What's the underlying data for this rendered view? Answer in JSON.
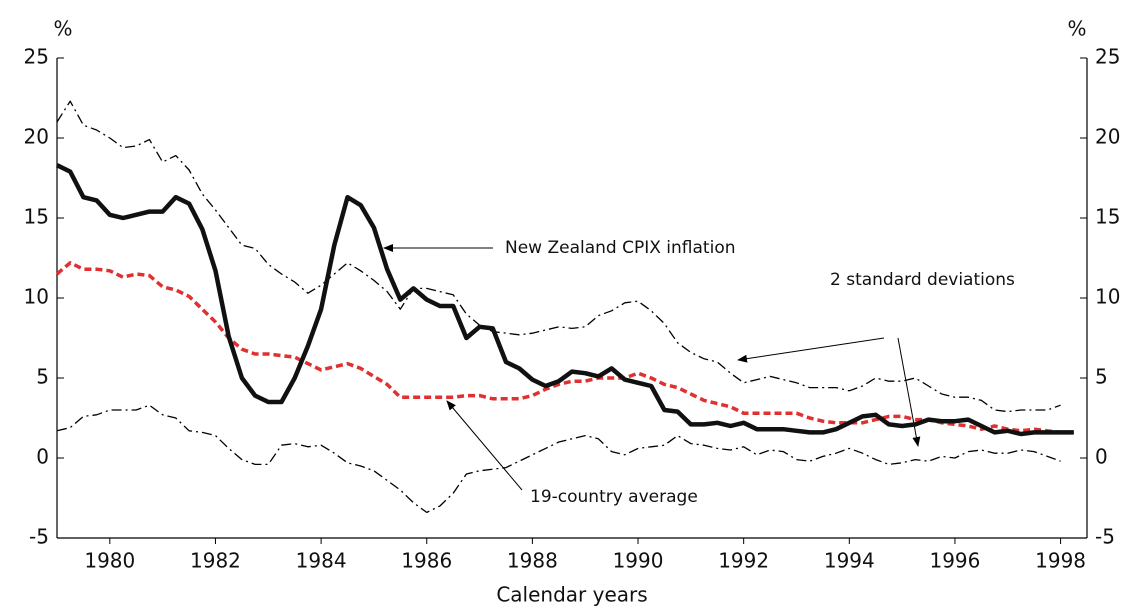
{
  "chart_data": {
    "type": "line",
    "y_label": "%",
    "y2_label": "%",
    "x_label": "Calendar years",
    "xlim": [
      1979,
      1998.5
    ],
    "xticks": [
      1980,
      1982,
      1984,
      1986,
      1988,
      1990,
      1992,
      1994,
      1996,
      1998
    ],
    "ylim": [
      -5,
      25
    ],
    "yticks": [
      -5,
      0,
      5,
      10,
      15,
      20,
      25
    ],
    "y2lim": [
      -5,
      25
    ],
    "y2ticks": [
      -5,
      0,
      5,
      10,
      15,
      20,
      25
    ],
    "grid": false,
    "x": [
      1979,
      1979.25,
      1979.5,
      1979.75,
      1980,
      1980.25,
      1980.5,
      1980.75,
      1981,
      1981.25,
      1981.5,
      1981.75,
      1982,
      1982.25,
      1982.5,
      1982.75,
      1983,
      1983.25,
      1983.5,
      1983.75,
      1984,
      1984.25,
      1984.5,
      1984.75,
      1985,
      1985.25,
      1985.5,
      1985.75,
      1986,
      1986.25,
      1986.5,
      1986.75,
      1987,
      1987.25,
      1987.5,
      1987.75,
      1988,
      1988.25,
      1988.5,
      1988.75,
      1989,
      1989.25,
      1989.5,
      1989.75,
      1990,
      1990.25,
      1990.5,
      1990.75,
      1991,
      1991.25,
      1991.5,
      1991.75,
      1992,
      1992.25,
      1992.5,
      1992.75,
      1993,
      1993.25,
      1993.5,
      1993.75,
      1994,
      1994.25,
      1994.5,
      1994.75,
      1995,
      1995.25,
      1995.5,
      1995.75,
      1996,
      1996.25,
      1996.5,
      1996.75,
      1997,
      1997.25,
      1997.5,
      1997.75,
      1998,
      1998.25
    ],
    "series": [
      {
        "color": "#000000",
        "style": "dashdot",
        "linewidth": 1.3,
        "values": [
          21,
          22.3,
          20.8,
          20.5,
          20,
          19.4,
          19.5,
          19.9,
          18.5,
          18.9,
          18,
          16.5,
          15.5,
          14.4,
          13.3,
          13.1,
          12.1,
          11.5,
          11.0,
          10.3,
          10.8,
          11.5,
          12.2,
          11.7,
          11.1,
          10.4,
          9.3,
          10.6,
          10.6,
          10.4,
          10.2,
          9.0,
          8.3,
          7.9,
          7.8,
          7.7,
          7.8,
          8.0,
          8.2,
          8.1,
          8.2,
          8.9,
          9.2,
          9.7,
          9.8,
          9.2,
          8.4,
          7.2,
          6.6,
          6.2,
          6.0,
          5.3,
          4.7,
          4.9,
          5.1,
          4.9,
          4.7,
          4.4,
          4.4,
          4.4,
          4.2,
          4.5,
          5.0,
          4.8,
          4.8,
          5.0,
          4.5,
          4.0,
          3.8,
          3.8,
          3.6,
          3.0,
          2.9,
          3.0,
          3.0,
          3.0,
          3.3,
          null
        ]
      },
      {
        "color": "#000000",
        "style": "dashdot",
        "linewidth": 1.3,
        "values": [
          1.7,
          1.9,
          2.6,
          2.7,
          3.0,
          3.0,
          3.0,
          3.3,
          2.7,
          2.5,
          1.7,
          1.6,
          1.4,
          0.6,
          -0.1,
          -0.4,
          -0.4,
          0.8,
          0.9,
          0.7,
          0.8,
          0.3,
          -0.3,
          -0.5,
          -0.8,
          -1.4,
          -2.0,
          -2.8,
          -3.4,
          -3.0,
          -2.2,
          -1.0,
          -0.8,
          -0.7,
          -0.6,
          -0.2,
          0.2,
          0.6,
          1.0,
          1.2,
          1.4,
          1.2,
          0.4,
          0.2,
          0.6,
          0.7,
          0.8,
          1.4,
          0.9,
          0.8,
          0.6,
          0.5,
          0.7,
          0.2,
          0.5,
          0.4,
          -0.1,
          -0.2,
          0.1,
          0.3,
          0.6,
          0.3,
          -0.1,
          -0.4,
          -0.3,
          -0.1,
          -0.2,
          0.1,
          0.0,
          0.4,
          0.5,
          0.3,
          0.3,
          0.5,
          0.4,
          0.1,
          -0.2,
          null
        ]
      },
      {
        "color": "#e03030",
        "style": "dashed",
        "linewidth": 3.5,
        "values": [
          11.5,
          12.2,
          11.8,
          11.8,
          11.7,
          11.3,
          11.5,
          11.4,
          10.7,
          10.5,
          10.1,
          9.3,
          8.5,
          7.5,
          6.8,
          6.5,
          6.5,
          6.4,
          6.3,
          5.9,
          5.5,
          5.7,
          5.9,
          5.6,
          5.1,
          4.6,
          3.8,
          3.8,
          3.8,
          3.8,
          3.8,
          3.9,
          3.9,
          3.7,
          3.7,
          3.7,
          3.9,
          4.3,
          4.6,
          4.8,
          4.8,
          5.0,
          5.0,
          5.0,
          5.3,
          5.0,
          4.6,
          4.4,
          4.0,
          3.6,
          3.4,
          3.2,
          2.8,
          2.8,
          2.8,
          2.8,
          2.8,
          2.5,
          2.3,
          2.2,
          2.2,
          2.2,
          2.4,
          2.6,
          2.6,
          2.4,
          2.4,
          2.2,
          2.1,
          2.0,
          1.8,
          2.0,
          1.8,
          1.7,
          1.8,
          1.7,
          1.6,
          1.6
        ]
      },
      {
        "color": "#111111",
        "style": "solid",
        "linewidth": 4.5,
        "values": [
          18.3,
          17.9,
          16.3,
          16.1,
          15.2,
          15.0,
          15.2,
          15.4,
          15.4,
          16.3,
          15.9,
          14.3,
          11.7,
          7.6,
          5.0,
          3.9,
          3.5,
          3.5,
          5.0,
          7.0,
          9.3,
          13.3,
          16.3,
          15.8,
          14.4,
          11.8,
          9.9,
          10.6,
          9.9,
          9.5,
          9.5,
          7.5,
          8.2,
          8.1,
          6.0,
          5.6,
          4.9,
          4.5,
          4.8,
          5.4,
          5.3,
          5.1,
          5.6,
          4.9,
          4.7,
          4.5,
          3.0,
          2.9,
          2.1,
          2.1,
          2.2,
          2.0,
          2.2,
          1.8,
          1.8,
          1.8,
          1.7,
          1.6,
          1.6,
          1.8,
          2.2,
          2.6,
          2.7,
          2.1,
          2.0,
          2.1,
          2.4,
          2.3,
          2.3,
          2.4,
          2.0,
          1.6,
          1.7,
          1.5,
          1.6,
          1.6,
          1.6,
          1.6
        ]
      }
    ],
    "annotations": [
      "New Zealand CPIX inflation",
      "2 standard deviations",
      "19-country average"
    ]
  }
}
